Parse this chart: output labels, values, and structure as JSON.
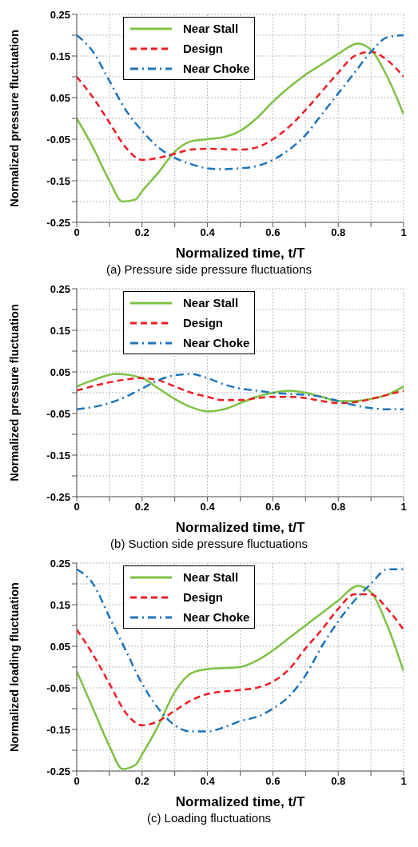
{
  "chart_data": [
    {
      "type": "line",
      "title": "(a) Pressure side pressure fluctuations",
      "xlabel": "Normalized time, t/T",
      "ylabel": "Normalized pressure fluctuation",
      "xlim": [
        0,
        1
      ],
      "ylim": [
        -0.25,
        0.25
      ],
      "xticks": [
        {
          "value": 0,
          "label": "0"
        },
        {
          "value": 0.1,
          "label": null
        },
        {
          "value": 0.2,
          "label": "0.2"
        },
        {
          "value": 0.3,
          "label": null
        },
        {
          "value": 0.4,
          "label": "0.4"
        },
        {
          "value": 0.5,
          "label": null
        },
        {
          "value": 0.6,
          "label": "0.6"
        },
        {
          "value": 0.7,
          "label": null
        },
        {
          "value": 0.8,
          "label": "0.8"
        },
        {
          "value": 0.9,
          "label": null
        },
        {
          "value": 1,
          "label": "1"
        }
      ],
      "yticks": [
        {
          "value": -0.25,
          "label": "-0.25"
        },
        {
          "value": -0.2,
          "label": null
        },
        {
          "value": -0.15,
          "label": "-0.15"
        },
        {
          "value": -0.1,
          "label": null
        },
        {
          "value": -0.05,
          "label": "-0.05"
        },
        {
          "value": 0,
          "label": null
        },
        {
          "value": 0.05,
          "label": "0.05"
        },
        {
          "value": 0.1,
          "label": null
        },
        {
          "value": 0.15,
          "label": "0.15"
        },
        {
          "value": 0.2,
          "label": null
        },
        {
          "value": 0.25,
          "label": "0.25"
        }
      ],
      "grid": true,
      "legend": "top left",
      "marker": "none",
      "series": [
        {
          "name": "Near Stall",
          "color": "#7dc242",
          "line_style": "solid",
          "x": [
            0,
            0.05,
            0.1,
            0.14,
            0.18,
            0.2,
            0.25,
            0.3,
            0.35,
            0.4,
            0.45,
            0.5,
            0.55,
            0.6,
            0.65,
            0.7,
            0.75,
            0.8,
            0.86,
            0.9,
            0.95,
            1
          ],
          "values": [
            0,
            -0.07,
            -0.15,
            -0.2,
            -0.195,
            -0.175,
            -0.13,
            -0.08,
            -0.055,
            -0.05,
            -0.045,
            -0.03,
            0,
            0.04,
            0.075,
            0.105,
            0.13,
            0.155,
            0.18,
            0.165,
            0.1,
            0.01
          ]
        },
        {
          "name": "Design",
          "color": "#ee1c24",
          "line_style": "dashed",
          "x": [
            0,
            0.05,
            0.1,
            0.15,
            0.2,
            0.25,
            0.3,
            0.35,
            0.4,
            0.5,
            0.55,
            0.6,
            0.65,
            0.7,
            0.75,
            0.8,
            0.85,
            0.9,
            0.95,
            1
          ],
          "values": [
            0.1,
            0.05,
            -0.01,
            -0.07,
            -0.1,
            -0.095,
            -0.085,
            -0.075,
            -0.073,
            -0.075,
            -0.07,
            -0.05,
            -0.02,
            0.02,
            0.065,
            0.11,
            0.15,
            0.16,
            0.14,
            0.1
          ]
        },
        {
          "name": "Near Choke",
          "color": "#1c75bc",
          "line_style": "dashdot",
          "x": [
            0,
            0.05,
            0.1,
            0.15,
            0.2,
            0.25,
            0.3,
            0.35,
            0.4,
            0.45,
            0.5,
            0.55,
            0.6,
            0.65,
            0.7,
            0.75,
            0.8,
            0.85,
            0.9,
            0.95,
            1
          ],
          "values": [
            0.2,
            0.16,
            0.09,
            0.02,
            -0.03,
            -0.07,
            -0.095,
            -0.11,
            -0.12,
            -0.122,
            -0.12,
            -0.115,
            -0.1,
            -0.075,
            -0.04,
            0.01,
            0.06,
            0.11,
            0.16,
            0.195,
            0.2
          ]
        }
      ]
    },
    {
      "type": "line",
      "title": "(b) Suction side pressure fluctuations",
      "xlabel": "Normalized time, t/T",
      "ylabel": "Normalized pressure fluctuation",
      "xlim": [
        0,
        1
      ],
      "ylim": [
        -0.25,
        0.25
      ],
      "xticks": [
        {
          "value": 0,
          "label": "0"
        },
        {
          "value": 0.1,
          "label": null
        },
        {
          "value": 0.2,
          "label": "0.2"
        },
        {
          "value": 0.3,
          "label": null
        },
        {
          "value": 0.4,
          "label": "0.4"
        },
        {
          "value": 0.5,
          "label": null
        },
        {
          "value": 0.6,
          "label": "0.6"
        },
        {
          "value": 0.7,
          "label": null
        },
        {
          "value": 0.8,
          "label": "0.8"
        },
        {
          "value": 0.9,
          "label": null
        },
        {
          "value": 1,
          "label": "1"
        }
      ],
      "yticks": [
        {
          "value": -0.25,
          "label": "-0.25"
        },
        {
          "value": -0.2,
          "label": null
        },
        {
          "value": -0.15,
          "label": "-0.15"
        },
        {
          "value": -0.1,
          "label": null
        },
        {
          "value": -0.05,
          "label": "-0.05"
        },
        {
          "value": 0,
          "label": null
        },
        {
          "value": 0.05,
          "label": "0.05"
        },
        {
          "value": 0.1,
          "label": null
        },
        {
          "value": 0.15,
          "label": "0.15"
        },
        {
          "value": 0.2,
          "label": null
        },
        {
          "value": 0.25,
          "label": "0.25"
        }
      ],
      "grid": true,
      "legend": "top left",
      "marker": "none",
      "series": [
        {
          "name": "Near Stall",
          "color": "#7dc242",
          "line_style": "solid",
          "x": [
            0,
            0.05,
            0.12,
            0.2,
            0.25,
            0.3,
            0.35,
            0.4,
            0.45,
            0.5,
            0.55,
            0.6,
            0.65,
            0.7,
            0.75,
            0.8,
            0.85,
            0.9,
            0.95,
            1
          ],
          "values": [
            0.015,
            0.03,
            0.045,
            0.035,
            0.01,
            -0.015,
            -0.035,
            -0.045,
            -0.04,
            -0.025,
            -0.01,
            0,
            0.005,
            0,
            -0.01,
            -0.02,
            -0.02,
            -0.015,
            -0.005,
            0.015
          ]
        },
        {
          "name": "Design",
          "color": "#ee1c24",
          "line_style": "dashed",
          "x": [
            0,
            0.1,
            0.2,
            0.25,
            0.3,
            0.35,
            0.4,
            0.45,
            0.5,
            0.55,
            0.6,
            0.65,
            0.7,
            0.75,
            0.8,
            0.85,
            0.9,
            0.95,
            1
          ],
          "values": [
            0.005,
            0.025,
            0.035,
            0.03,
            0.015,
            0,
            -0.01,
            -0.018,
            -0.018,
            -0.013,
            -0.01,
            -0.01,
            -0.013,
            -0.02,
            -0.025,
            -0.023,
            -0.015,
            -0.005,
            0.005
          ]
        },
        {
          "name": "Near Choke",
          "color": "#1c75bc",
          "line_style": "dashdot",
          "x": [
            0,
            0.1,
            0.15,
            0.2,
            0.25,
            0.3,
            0.35,
            0.4,
            0.45,
            0.5,
            0.55,
            0.6,
            0.65,
            0.7,
            0.75,
            0.8,
            0.85,
            0.9,
            0.95,
            1
          ],
          "values": [
            -0.04,
            -0.025,
            -0.01,
            0.01,
            0.03,
            0.042,
            0.045,
            0.035,
            0.02,
            0.01,
            0.005,
            0,
            -0.003,
            -0.005,
            -0.01,
            -0.02,
            -0.03,
            -0.037,
            -0.04,
            -0.04
          ]
        }
      ]
    },
    {
      "type": "line",
      "title": "(c) Loading fluctuations",
      "xlabel": "Normalized time, t/T",
      "ylabel": "Normalized loading fluctuation",
      "xlim": [
        0,
        1
      ],
      "ylim": [
        -0.25,
        0.25
      ],
      "xticks": [
        {
          "value": 0,
          "label": "0"
        },
        {
          "value": 0.1,
          "label": null
        },
        {
          "value": 0.2,
          "label": "0.2"
        },
        {
          "value": 0.3,
          "label": null
        },
        {
          "value": 0.4,
          "label": "0.4"
        },
        {
          "value": 0.5,
          "label": null
        },
        {
          "value": 0.6,
          "label": "0.6"
        },
        {
          "value": 0.7,
          "label": null
        },
        {
          "value": 0.8,
          "label": "0.8"
        },
        {
          "value": 0.9,
          "label": null
        },
        {
          "value": 1,
          "label": "1"
        }
      ],
      "yticks": [
        {
          "value": -0.25,
          "label": "-0.25"
        },
        {
          "value": -0.2,
          "label": null
        },
        {
          "value": -0.15,
          "label": "-0.15"
        },
        {
          "value": -0.1,
          "label": null
        },
        {
          "value": -0.05,
          "label": "-0.05"
        },
        {
          "value": 0,
          "label": null
        },
        {
          "value": 0.05,
          "label": "0.05"
        },
        {
          "value": 0.1,
          "label": null
        },
        {
          "value": 0.15,
          "label": "0.15"
        },
        {
          "value": 0.2,
          "label": null
        },
        {
          "value": 0.25,
          "label": "0.25"
        }
      ],
      "grid": true,
      "legend": "top left",
      "marker": "none",
      "series": [
        {
          "name": "Near Stall",
          "color": "#7dc242",
          "line_style": "solid",
          "x": [
            0,
            0.05,
            0.1,
            0.14,
            0.18,
            0.2,
            0.25,
            0.3,
            0.35,
            0.4,
            0.5,
            0.55,
            0.6,
            0.65,
            0.7,
            0.75,
            0.8,
            0.86,
            0.9,
            0.95,
            1
          ],
          "values": [
            -0.01,
            -0.1,
            -0.19,
            -0.245,
            -0.235,
            -0.21,
            -0.14,
            -0.06,
            -0.015,
            -0.005,
            0,
            0.015,
            0.04,
            0.07,
            0.1,
            0.13,
            0.16,
            0.195,
            0.18,
            0.1,
            -0.01
          ]
        },
        {
          "name": "Design",
          "color": "#ee1c24",
          "line_style": "dashed",
          "x": [
            0,
            0.05,
            0.1,
            0.15,
            0.2,
            0.25,
            0.3,
            0.35,
            0.4,
            0.5,
            0.55,
            0.6,
            0.65,
            0.7,
            0.75,
            0.8,
            0.85,
            0.9,
            0.95,
            1
          ],
          "values": [
            0.09,
            0.03,
            -0.04,
            -0.11,
            -0.14,
            -0.13,
            -0.105,
            -0.08,
            -0.065,
            -0.055,
            -0.05,
            -0.035,
            -0.005,
            0.045,
            0.09,
            0.14,
            0.175,
            0.175,
            0.14,
            0.09
          ]
        },
        {
          "name": "Near Choke",
          "color": "#1c75bc",
          "line_style": "dashdot",
          "x": [
            0,
            0.05,
            0.1,
            0.15,
            0.2,
            0.25,
            0.3,
            0.35,
            0.4,
            0.45,
            0.5,
            0.55,
            0.6,
            0.65,
            0.7,
            0.75,
            0.8,
            0.85,
            0.9,
            0.95,
            1
          ],
          "values": [
            0.235,
            0.2,
            0.12,
            0.04,
            -0.04,
            -0.1,
            -0.14,
            -0.155,
            -0.155,
            -0.145,
            -0.13,
            -0.12,
            -0.1,
            -0.07,
            -0.02,
            0.05,
            0.11,
            0.16,
            0.2,
            0.235,
            0.235
          ]
        }
      ]
    }
  ]
}
